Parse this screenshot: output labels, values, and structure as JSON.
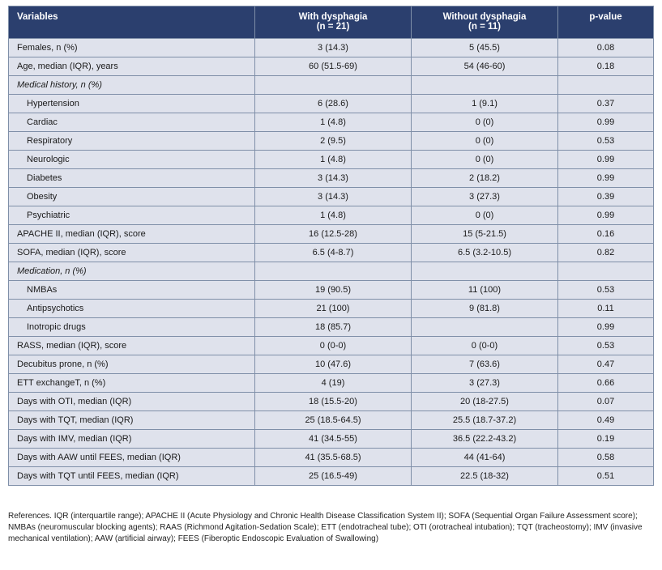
{
  "header": {
    "variables": "Variables",
    "with_line1": "With dysphagia",
    "with_line2": "(n = 21)",
    "without_line1": "Without dysphagia",
    "without_line2": "(n = 11)",
    "pvalue": "p-value"
  },
  "rows": [
    {
      "label": "Females, n (%)",
      "with": "3 (14.3)",
      "without": "5 (45.5)",
      "p": "0.08",
      "kind": "main"
    },
    {
      "label": "Age, median (IQR), years",
      "with": "60 (51.5-69)",
      "without": "54 (46-60)",
      "p": "0.18",
      "kind": "main"
    },
    {
      "label": "Medical history, n (%)",
      "with": "",
      "without": "",
      "p": "",
      "kind": "section"
    },
    {
      "label": "Hypertension",
      "with": "6 (28.6)",
      "without": "1 (9.1)",
      "p": "0.37",
      "kind": "sub"
    },
    {
      "label": "Cardiac",
      "with": "1 (4.8)",
      "without": "0 (0)",
      "p": "0.99",
      "kind": "sub"
    },
    {
      "label": "Respiratory",
      "with": "2 (9.5)",
      "without": "0 (0)",
      "p": "0.53",
      "kind": "sub"
    },
    {
      "label": "Neurologic",
      "with": "1 (4.8)",
      "without": "0 (0)",
      "p": "0.99",
      "kind": "sub"
    },
    {
      "label": "Diabetes",
      "with": "3 (14.3)",
      "without": "2 (18.2)",
      "p": "0.99",
      "kind": "sub"
    },
    {
      "label": "Obesity",
      "with": "3 (14.3)",
      "without": "3 (27.3)",
      "p": "0.39",
      "kind": "sub"
    },
    {
      "label": "Psychiatric",
      "with": "1 (4.8)",
      "without": "0 (0)",
      "p": "0.99",
      "kind": "sub"
    },
    {
      "label": "APACHE II, median (IQR), score",
      "with": "16 (12.5-28)",
      "without": "15 (5-21.5)",
      "p": "0.16",
      "kind": "main"
    },
    {
      "label": "SOFA, median (IQR), score",
      "with": "6.5 (4-8.7)",
      "without": "6.5 (3.2-10.5)",
      "p": "0.82",
      "kind": "main"
    },
    {
      "label": "Medication, n (%)",
      "with": "",
      "without": "",
      "p": "",
      "kind": "section"
    },
    {
      "label": "NMBAs",
      "with": "19 (90.5)",
      "without": "11 (100)",
      "p": "0.53",
      "kind": "sub"
    },
    {
      "label": "Antipsychotics",
      "with": "21 (100)",
      "without": "9 (81.8)",
      "p": "0.11",
      "kind": "sub"
    },
    {
      "label": "Inotropic drugs",
      "with": "18 (85.7)",
      "without": "",
      "p": "0.99",
      "kind": "sub"
    },
    {
      "label": "RASS, median (IQR), score",
      "with": "0 (0-0)",
      "without": "0 (0-0)",
      "p": "0.53",
      "kind": "main"
    },
    {
      "label": "Decubitus prone, n (%)",
      "with": "10 (47.6)",
      "without": "7 (63.6)",
      "p": "0.47",
      "kind": "main"
    },
    {
      "label": "ETT exchangeT, n (%)",
      "with": "4 (19)",
      "without": "3 (27.3)",
      "p": "0.66",
      "kind": "main"
    },
    {
      "label": "Days with OTI, median (IQR)",
      "with": "18 (15.5-20)",
      "without": "20 (18-27.5)",
      "p": "0.07",
      "kind": "main"
    },
    {
      "label": "Days with TQT, median (IQR)",
      "with": "25 (18.5-64.5)",
      "without": "25.5 (18.7-37.2)",
      "p": "0.49",
      "kind": "main"
    },
    {
      "label": "Days with IMV, median (IQR)",
      "with": "41 (34.5-55)",
      "without": "36.5 (22.2-43.2)",
      "p": "0.19",
      "kind": "main"
    },
    {
      "label": "Days with AAW until FEES, median (IQR)",
      "with": "41 (35.5-68.5)",
      "without": "44 (41-64)",
      "p": "0.58",
      "kind": "main"
    },
    {
      "label": "Days with TQT until FEES, median (IQR)",
      "with": "25 (16.5-49)",
      "without": "22.5 (18-32)",
      "p": "0.51",
      "kind": "main"
    }
  ],
  "footnote": "References. IQR (interquartile range); APACHE II (Acute Physiology and Chronic Health Disease Classification System II); SOFA (Sequential Organ Failure Assessment score); NMBAs (neuromuscular blocking agents); RAAS (Richmond Agitation-Sedation Scale); ETT (endotracheal tube); OTI (orotracheal intubation); TQT (tracheostomy); IMV (invasive mechanical ventilation); AAW (artificial airway); FEES (Fiberoptic Endoscopic Evaluation of Swallowing)",
  "colors": {
    "header_bg": "#2b3f6e",
    "row_bg": "#dfe2ec",
    "border": "#7f8fa8"
  }
}
